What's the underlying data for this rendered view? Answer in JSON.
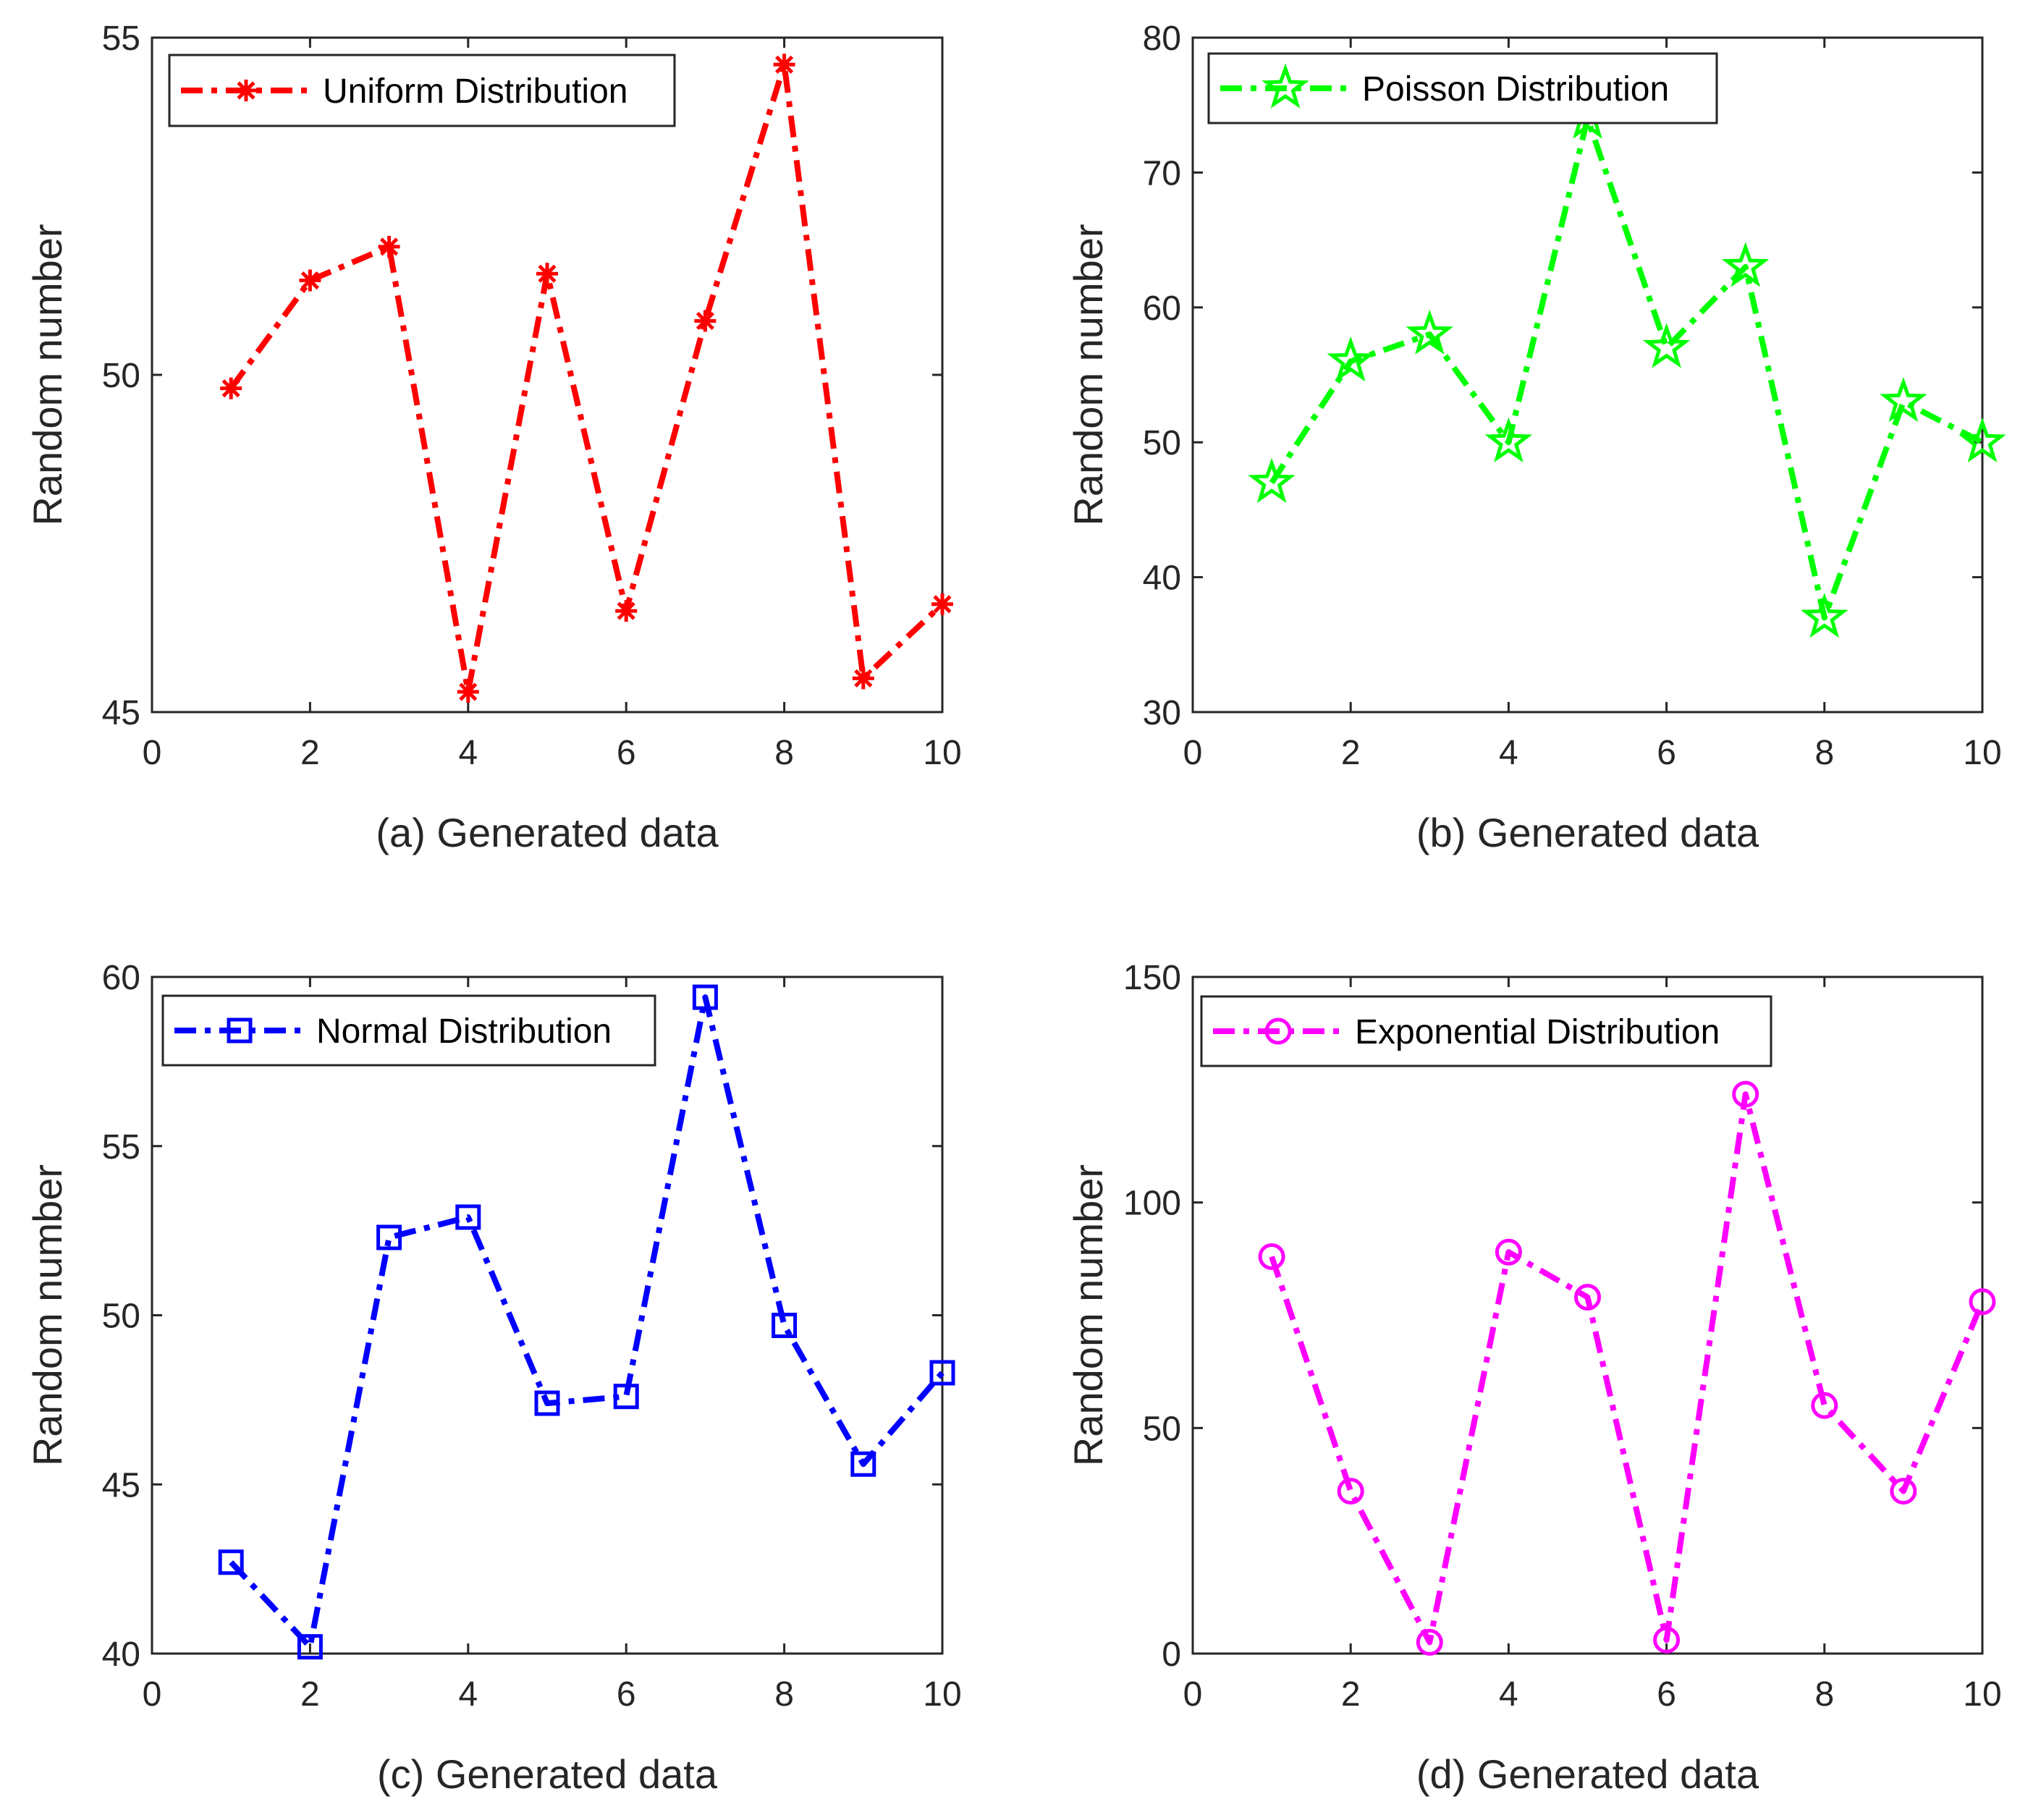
{
  "chart_data": [
    {
      "id": "a",
      "type": "line",
      "title": "",
      "xlabel": "(a) Generated data",
      "ylabel": "Random number",
      "xlim": [
        0,
        10
      ],
      "ylim": [
        45,
        55
      ],
      "xticks": [
        "0",
        "2",
        "4",
        "6",
        "8",
        "10"
      ],
      "yticks": [
        "45",
        "50",
        "55"
      ],
      "legend_location": "top-left",
      "grid": false,
      "series": [
        {
          "name": "Uniform Distribution",
          "color": "#ff0000",
          "marker": "asterisk",
          "line_style": "dash-dot",
          "x": [
            1,
            2,
            3,
            4,
            5,
            6,
            7,
            8,
            9,
            10
          ],
          "values": [
            49.8,
            51.4,
            51.9,
            45.3,
            51.5,
            46.5,
            50.8,
            54.6,
            45.5,
            46.6
          ]
        }
      ]
    },
    {
      "id": "b",
      "type": "line",
      "title": "",
      "xlabel": "(b) Generated data",
      "ylabel": "Random number",
      "xlim": [
        0,
        10
      ],
      "ylim": [
        30,
        80
      ],
      "xticks": [
        "0",
        "2",
        "4",
        "6",
        "8",
        "10"
      ],
      "yticks": [
        "30",
        "40",
        "50",
        "60",
        "70",
        "80"
      ],
      "legend_location": "top-left",
      "grid": false,
      "series": [
        {
          "name": "Poisson Distribution",
          "color": "#00ff00",
          "marker": "pentagram",
          "line_style": "dash-dot",
          "x": [
            1,
            2,
            3,
            4,
            5,
            6,
            7,
            8,
            9,
            10
          ],
          "values": [
            47,
            56,
            58,
            50,
            74,
            57,
            63,
            37,
            53,
            50
          ]
        }
      ]
    },
    {
      "id": "c",
      "type": "line",
      "title": "",
      "xlabel": "(c) Generated data",
      "ylabel": "Random number",
      "xlim": [
        0,
        10
      ],
      "ylim": [
        40,
        60
      ],
      "xticks": [
        "0",
        "2",
        "4",
        "6",
        "8",
        "10"
      ],
      "yticks": [
        "40",
        "45",
        "50",
        "55",
        "60"
      ],
      "legend_location": "top-left",
      "grid": false,
      "series": [
        {
          "name": "Normal Distribution",
          "color": "#0000ff",
          "marker": "square",
          "line_style": "dash-dot",
          "x": [
            1,
            2,
            3,
            4,
            5,
            6,
            7,
            8,
            9,
            10
          ],
          "values": [
            42.7,
            40.2,
            52.3,
            52.9,
            47.4,
            47.6,
            59.4,
            49.7,
            45.6,
            48.3
          ]
        }
      ]
    },
    {
      "id": "d",
      "type": "line",
      "title": "",
      "xlabel": "(d) Generated data",
      "ylabel": "Random number",
      "xlim": [
        0,
        10
      ],
      "ylim": [
        0,
        150
      ],
      "xticks": [
        "0",
        "2",
        "4",
        "6",
        "8",
        "10"
      ],
      "yticks": [
        "0",
        "50",
        "100",
        "150"
      ],
      "legend_location": "top-left",
      "grid": false,
      "series": [
        {
          "name": "Exponential Distribution",
          "color": "#ff00ff",
          "marker": "circle",
          "line_style": "dash-dot",
          "x": [
            1,
            2,
            3,
            4,
            5,
            6,
            7,
            8,
            9,
            10
          ],
          "values": [
            88,
            36,
            2.5,
            89,
            79,
            3,
            124,
            55,
            36,
            78
          ]
        }
      ]
    }
  ]
}
